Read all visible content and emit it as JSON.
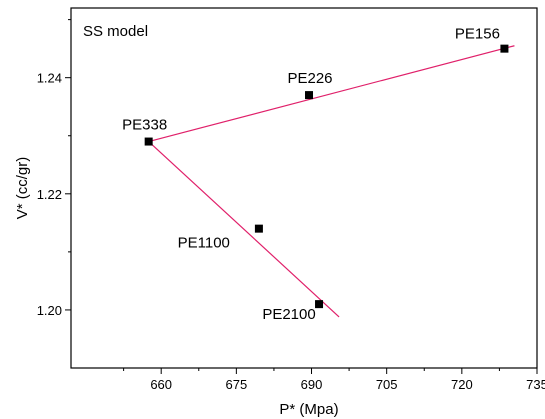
{
  "chart_data": {
    "type": "scatter",
    "annotation": "SS model",
    "xlabel": "P* (Mpa)",
    "ylabel": "V* (cc/gr)",
    "xlim": [
      642,
      735
    ],
    "ylim": [
      1.19,
      1.252
    ],
    "xticks": [
      660,
      675,
      690,
      705,
      720,
      735
    ],
    "yticks": [
      1.2,
      1.22,
      1.24
    ],
    "series": [
      {
        "marker": "square",
        "color": "#000000",
        "points": [
          {
            "label": "PE156",
            "x": 728.5,
            "y": 1.245
          },
          {
            "label": "PE226",
            "x": 689.5,
            "y": 1.237
          },
          {
            "label": "PE338",
            "x": 657.5,
            "y": 1.229
          },
          {
            "label": "PE1100",
            "x": 679.5,
            "y": 1.214
          },
          {
            "label": "PE2100",
            "x": 691.5,
            "y": 1.201
          }
        ]
      }
    ],
    "fit_lines": [
      {
        "color": "#e0206a",
        "x": [
          657.5,
          730.5
        ],
        "y": [
          1.229,
          1.2455
        ]
      },
      {
        "color": "#e0206a",
        "x": [
          657.5,
          695.5
        ],
        "y": [
          1.229,
          1.1988
        ]
      }
    ]
  }
}
